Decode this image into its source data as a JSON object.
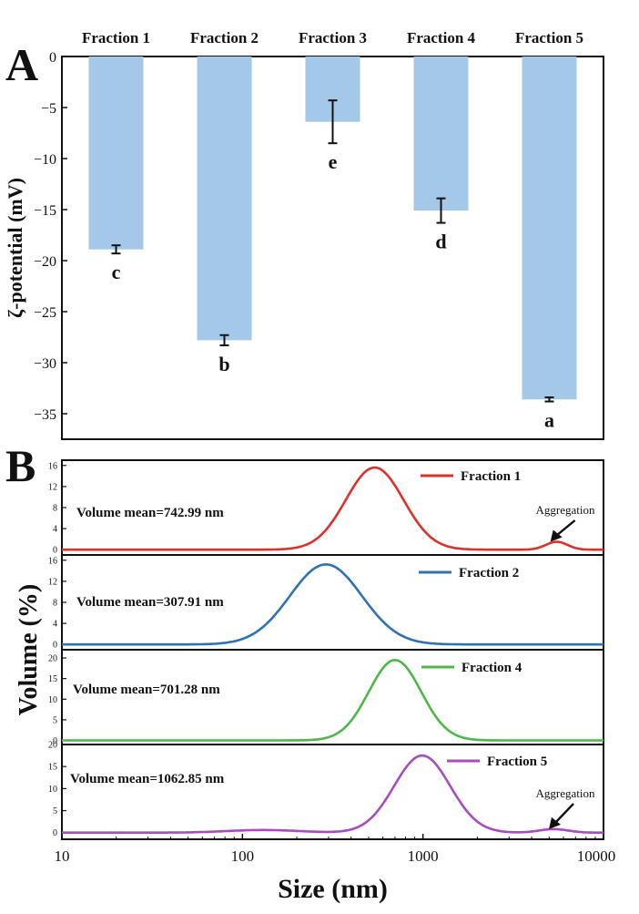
{
  "chart_data": [
    {
      "panel_label": "A",
      "type": "bar",
      "categories": [
        "Fraction 1",
        "Fraction 2",
        "Fraction 3",
        "Fraction 4",
        "Fraction 5"
      ],
      "values": [
        -18.9,
        -27.8,
        -6.4,
        -15.1,
        -33.6
      ],
      "errors": [
        0.4,
        0.5,
        2.1,
        1.2,
        0.2
      ],
      "significance_letters": [
        "c",
        "b",
        "e",
        "d",
        "a"
      ],
      "ylabel": "ζ-potential (mV)",
      "ylim": [
        -37.5,
        0
      ],
      "yticks": [
        0,
        -5,
        -10,
        -15,
        -20,
        -25,
        -30,
        -35
      ],
      "bar_color": "#a4c9e8",
      "category_axis_position": "top"
    },
    {
      "panel_label": "B",
      "type": "line",
      "x_scale": "log",
      "xlabel": "Size (nm)",
      "ylabel": "Volume (%)",
      "xlim": [
        10,
        10000
      ],
      "xticks": [
        10,
        100,
        1000,
        10000
      ],
      "subplots": [
        {
          "series_name": "Fraction 1",
          "color": "#e0302a",
          "annotation": "Volume mean=742.99 nm",
          "aggregation_label": "Aggregation",
          "aggregation_x": 5200,
          "ylim": [
            -1,
            17
          ],
          "yticks": [
            0,
            4,
            8,
            12,
            16
          ],
          "peaks": [
            {
              "center": 540,
              "height": 15.6,
              "sigma": 0.16
            },
            {
              "center": 5500,
              "height": 1.5,
              "sigma": 0.06
            }
          ]
        },
        {
          "series_name": "Fraction 2",
          "color": "#2e72b6",
          "annotation": "Volume mean=307.91 nm",
          "ylim": [
            -1,
            17
          ],
          "yticks": [
            0,
            4,
            8,
            12,
            16
          ],
          "peaks": [
            {
              "center": 290,
              "height": 15.2,
              "sigma": 0.2
            }
          ]
        },
        {
          "series_name": "Fraction 4",
          "color": "#4cb848",
          "annotation": "Volume mean=701.28 nm",
          "ylim": [
            -1,
            22
          ],
          "yticks": [
            0,
            5,
            10,
            15,
            20
          ],
          "peaks": [
            {
              "center": 700,
              "height": 19.5,
              "sigma": 0.145
            }
          ]
        },
        {
          "series_name": "Fraction 5",
          "color": "#a84cc0",
          "annotation": "Volume mean=1062.85 nm",
          "aggregation_label": "Aggregation",
          "aggregation_x": 5100,
          "ylim": [
            -1.5,
            20
          ],
          "yticks": [
            0,
            5,
            10,
            15,
            20
          ],
          "peaks": [
            {
              "center": 990,
              "height": 17.5,
              "sigma": 0.155
            },
            {
              "center": 130,
              "height": 0.6,
              "sigma": 0.2
            },
            {
              "center": 5300,
              "height": 0.8,
              "sigma": 0.08
            }
          ]
        }
      ]
    }
  ]
}
